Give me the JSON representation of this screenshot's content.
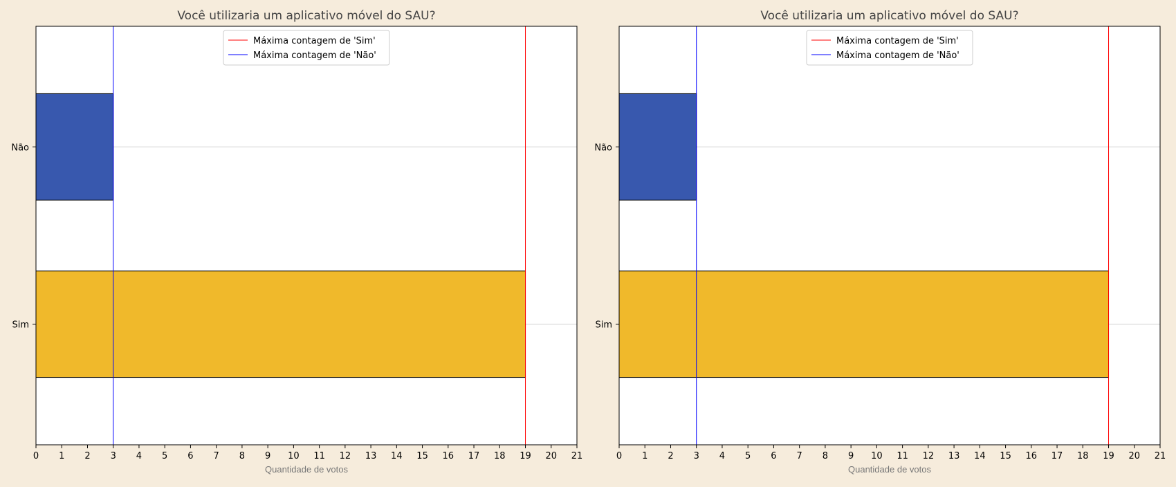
{
  "chart_data": [
    {
      "type": "bar",
      "orientation": "horizontal",
      "title": "Você utilizaria um aplicativo móvel do SAU?",
      "xlabel": "Quantidade de votos",
      "ylabel": "",
      "categories": [
        "Sim",
        "Não"
      ],
      "values": [
        19,
        3
      ],
      "bar_colors": [
        "#f0b92b",
        "#3858ae"
      ],
      "xlim": [
        0,
        21
      ],
      "xticks": [
        0,
        1,
        2,
        3,
        4,
        5,
        6,
        7,
        8,
        9,
        10,
        11,
        12,
        13,
        14,
        15,
        16,
        17,
        18,
        19,
        20,
        21
      ],
      "grid": "horizontal",
      "reference_lines": [
        {
          "label": "Máxima contagem de 'Sim'",
          "value": 19,
          "color": "#ff0000"
        },
        {
          "label": "Máxima contagem de 'Não'",
          "value": 3,
          "color": "#0000ff"
        }
      ],
      "legend": "top-center"
    },
    {
      "type": "bar",
      "orientation": "horizontal",
      "title": "Você utilizaria um aplicativo móvel do SAU?",
      "xlabel": "Quantidade de votos",
      "ylabel": "",
      "categories": [
        "Sim",
        "Não"
      ],
      "values": [
        19,
        3
      ],
      "bar_colors": [
        "#f0b92b",
        "#3858ae"
      ],
      "xlim": [
        0,
        21
      ],
      "xticks": [
        0,
        1,
        2,
        3,
        4,
        5,
        6,
        7,
        8,
        9,
        10,
        11,
        12,
        13,
        14,
        15,
        16,
        17,
        18,
        19,
        20,
        21
      ],
      "grid": "horizontal",
      "reference_lines": [
        {
          "label": "Máxima contagem de 'Sim'",
          "value": 19,
          "color": "#ff0000"
        },
        {
          "label": "Máxima contagem de 'Não'",
          "value": 3,
          "color": "#0000ff"
        }
      ],
      "legend": "top-center"
    }
  ]
}
